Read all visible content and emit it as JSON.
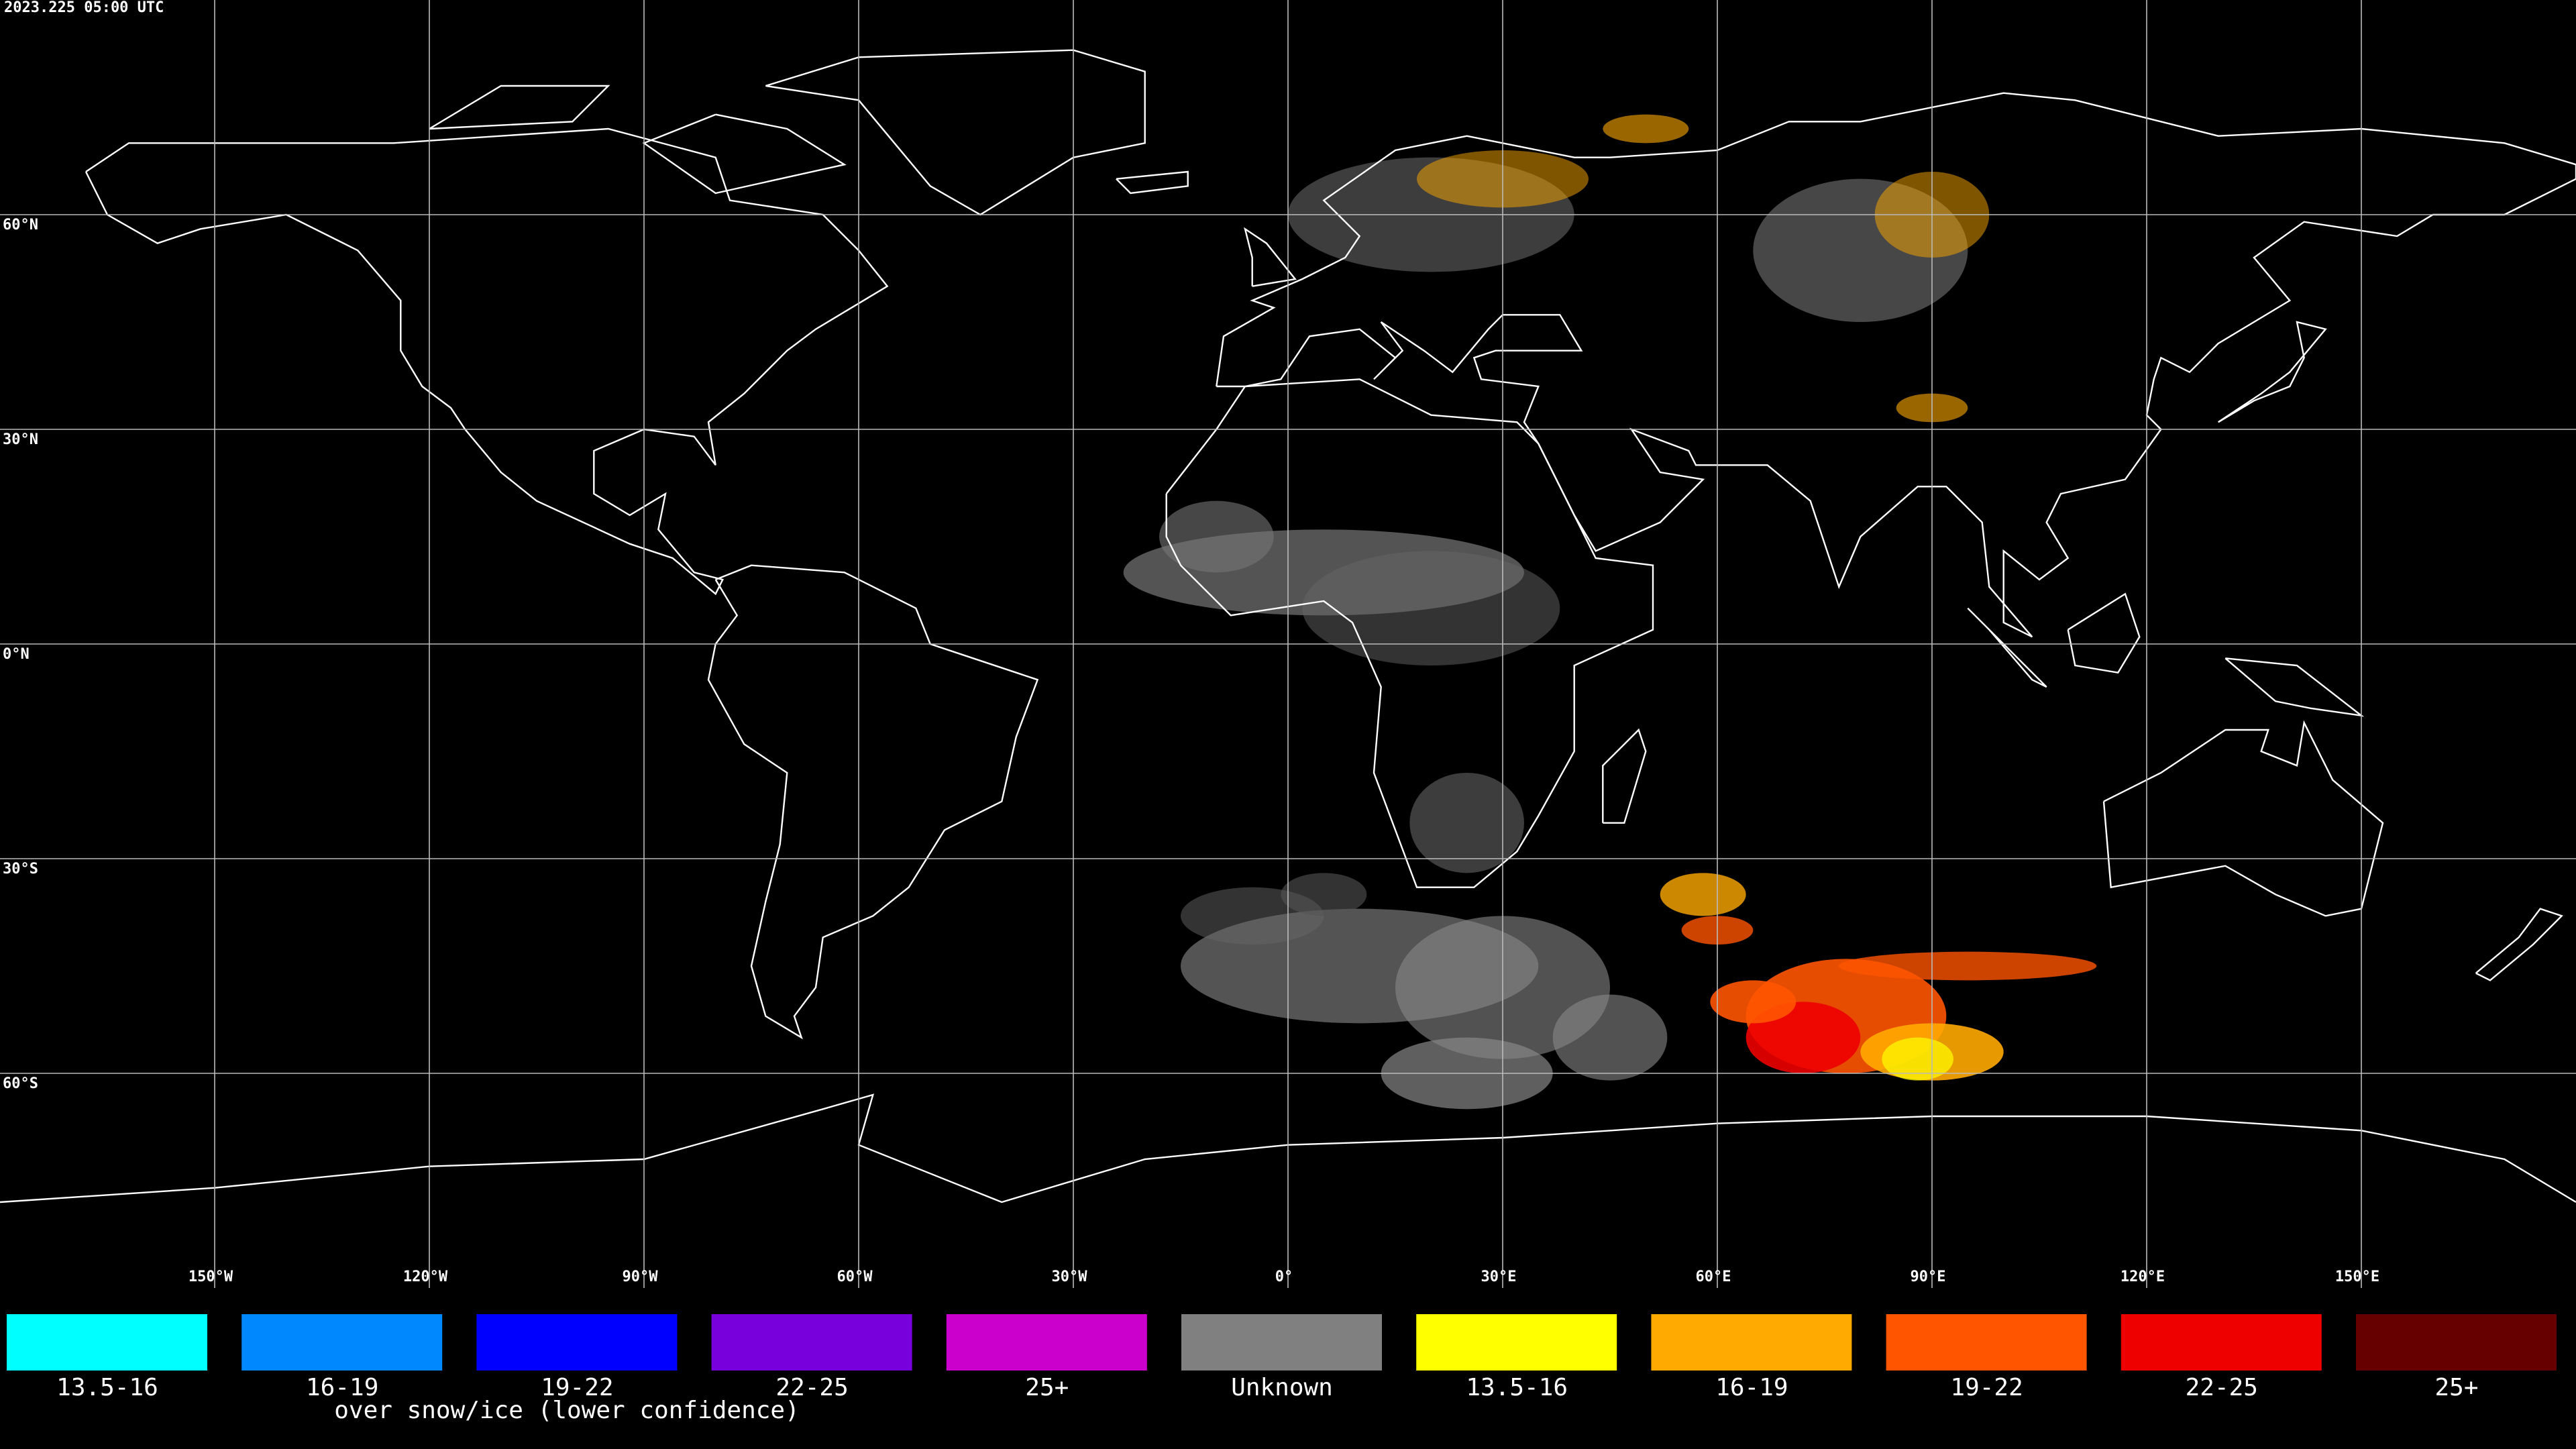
{
  "timestamp": "2023.225 05:00 UTC",
  "map": {
    "lat_labels": [
      "60°N",
      "30°N",
      "0°N",
      "30°S",
      "60°S"
    ],
    "lon_labels": [
      "150°W",
      "120°W",
      "90°W",
      "60°W",
      "30°W",
      "0°",
      "30°E",
      "60°E",
      "90°E",
      "120°E",
      "150°E"
    ]
  },
  "legend": {
    "items": [
      {
        "label": "13.5-16",
        "color": "#00ffff"
      },
      {
        "label": "16-19",
        "color": "#0088ff"
      },
      {
        "label": "19-22",
        "color": "#0000ff"
      },
      {
        "label": "22-25",
        "color": "#7700dd"
      },
      {
        "label": "25+",
        "color": "#cc00cc"
      },
      {
        "label": "Unknown",
        "color": "#808080"
      },
      {
        "label": "13.5-16",
        "color": "#ffff00"
      },
      {
        "label": "16-19",
        "color": "#ffaa00"
      },
      {
        "label": "19-22",
        "color": "#ff5500"
      },
      {
        "label": "22-25",
        "color": "#ee0000"
      },
      {
        "label": "25+",
        "color": "#660000"
      }
    ],
    "note": "over snow/ice (lower confidence)"
  }
}
